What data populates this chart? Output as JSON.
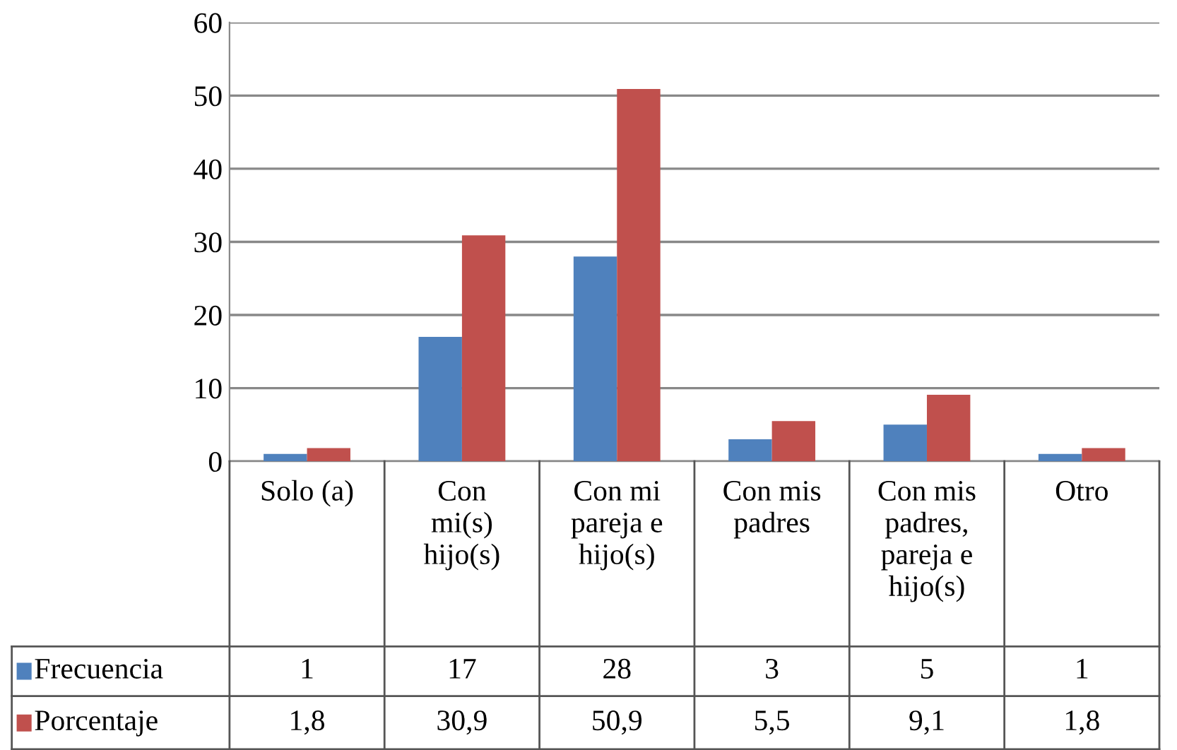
{
  "chart_data": {
    "type": "bar",
    "categories": [
      "Solo (a)",
      "Con\nmi(s)\nhijo(s)",
      "Con mi\npareja e\nhijo(s)",
      "Con mis\npadres",
      "Con mis\npadres,\npareja e\nhijo(s)",
      "Otro"
    ],
    "series": [
      {
        "name": "Frecuencia",
        "color": "#4f81bd",
        "values": [
          1,
          17,
          28,
          3,
          5,
          1
        ],
        "value_labels": [
          "1",
          "17",
          "28",
          "3",
          "5",
          "1"
        ]
      },
      {
        "name": "Porcentaje",
        "color": "#c0504d",
        "values": [
          1.8,
          30.9,
          50.9,
          5.5,
          9.1,
          1.8
        ],
        "value_labels": [
          "1,8",
          "30,9",
          "50,9",
          "5,5",
          "9,1",
          "1,8"
        ]
      }
    ],
    "ylim": [
      0,
      60
    ],
    "yticks": [
      0,
      10,
      20,
      30,
      40,
      50,
      60
    ],
    "grid": "y",
    "legend": "bottom"
  }
}
